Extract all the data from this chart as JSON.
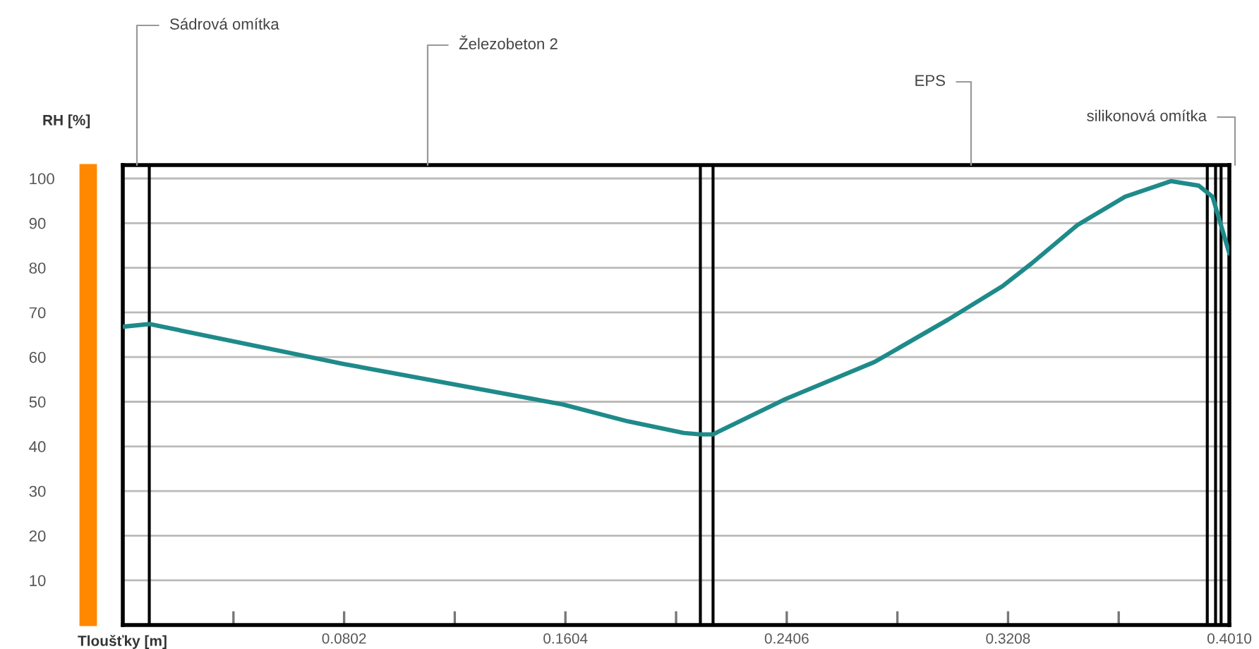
{
  "chart_data": {
    "type": "line",
    "xlabel": "Tloušťky [m]",
    "ylabel": "RH [%]",
    "x": [
      0,
      0.0096,
      0.0797,
      0.1594,
      0.1831,
      0.2033,
      0.2093,
      0.2139,
      0.2401,
      0.2724,
      0.2991,
      0.3188,
      0.3294,
      0.346,
      0.3632,
      0.3798,
      0.3899,
      0.3949,
      0.3975,
      0.401
    ],
    "series": [
      {
        "color": "#1f8a8a",
        "values": [
          66.8,
          67.4,
          58.5,
          49.4,
          45.6,
          43,
          42.7,
          42.7,
          50.6,
          58.9,
          68.4,
          75.9,
          81,
          89.6,
          95.9,
          99.4,
          98.4,
          95.9,
          90.5,
          83.2
        ]
      }
    ],
    "xlim": [
      0,
      0.401
    ],
    "ylim": [
      0,
      103
    ],
    "xticks": [
      {
        "value": 0.0401,
        "label": null
      },
      0.0802,
      {
        "value": 0.1203,
        "label": null
      },
      0.1604,
      {
        "value": 0.2005,
        "label": null
      },
      0.2406,
      {
        "value": 0.2807,
        "label": null
      },
      0.3208,
      {
        "value": 0.3609,
        "label": null
      },
      {
        "value": 0.401,
        "label": "0.4010"
      }
    ],
    "yticks": [
      10,
      20,
      30,
      40,
      50,
      60,
      70,
      80,
      90,
      100
    ],
    "grid": "y",
    "marker": "none",
    "line_style": "solid",
    "legend": false,
    "ref_lines": [
      {
        "axis": "x",
        "value": 0.0096,
        "color": "#000000"
      },
      {
        "axis": "x",
        "value": 0.2093,
        "color": "#000000"
      },
      {
        "axis": "x",
        "value": 0.2139,
        "color": "#000000"
      },
      {
        "axis": "x",
        "value": 0.393,
        "color": "#000000"
      },
      {
        "axis": "x",
        "value": 0.396,
        "color": "#000000"
      },
      {
        "axis": "x",
        "value": 0.398,
        "color": "#000000"
      }
    ],
    "annotations": [
      "Sádrová omítka",
      "Železobeton 2",
      "EPS",
      "silikonová omítka"
    ]
  }
}
